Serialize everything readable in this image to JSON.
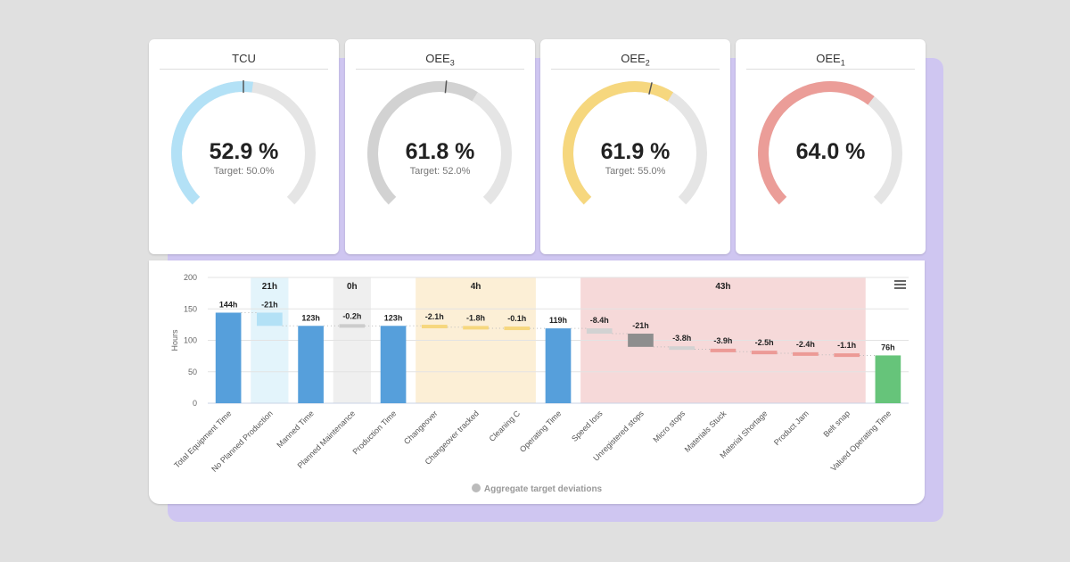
{
  "gauges": [
    {
      "title": "TCU",
      "sub": "",
      "value_label": "52.9 %",
      "value": 52.9,
      "target_label": "Target: 50.0%",
      "target": 50.0,
      "color": "#b3e1f6"
    },
    {
      "title": "OEE",
      "sub": "3",
      "value_label": "61.8 %",
      "value": 61.8,
      "target_label": "Target: 52.0%",
      "target": 52.0,
      "color": "#d2d2d2"
    },
    {
      "title": "OEE",
      "sub": "2",
      "value_label": "61.9 %",
      "value": 61.9,
      "target_label": "Target: 55.0%",
      "target": 55.0,
      "color": "#f6d77e"
    },
    {
      "title": "OEE",
      "sub": "1",
      "value_label": "64.0 %",
      "value": 64.0,
      "target_label": "",
      "target": null,
      "color": "#eb9d98"
    }
  ],
  "legend": {
    "label": "Aggregate target deviations"
  },
  "chart_data": {
    "type": "waterfall",
    "ylabel": "Hours",
    "ylim": [
      0,
      200
    ],
    "yticks": [
      0,
      50,
      100,
      150,
      200
    ],
    "grid": true,
    "categories": [
      "Total Equipment Time",
      "No Planned Production",
      "Manned Time",
      "Planned Maintenance",
      "Production Time",
      "Changeover",
      "Changeover tracked",
      "Cleaning C",
      "Operating Time",
      "Speed loss",
      "Unregistered stops",
      "Micro stops",
      "Materials Stuck",
      "Material Shortage",
      "Product Jam",
      "Belt snap",
      "Valued Operating Time"
    ],
    "values": [
      144,
      -21,
      123,
      -0.2,
      123,
      -2.1,
      -1.8,
      -0.1,
      119,
      -8.4,
      -21,
      -3.8,
      -3.9,
      -2.5,
      -2.4,
      -1.1,
      76
    ],
    "is_total": [
      true,
      false,
      true,
      false,
      true,
      false,
      false,
      false,
      true,
      false,
      false,
      false,
      false,
      false,
      false,
      false,
      true
    ],
    "labels": [
      "144h",
      "-21h",
      "123h",
      "-0.2h",
      "123h",
      "-2.1h",
      "-1.8h",
      "-0.1h",
      "119h",
      "-8.4h",
      "-21h",
      "-3.8h",
      "-3.9h",
      "-2.5h",
      "-2.4h",
      "-1.1h",
      "76h"
    ],
    "colors": [
      "#569fdb",
      "#b3e1f6",
      "#569fdb",
      "#cccccc",
      "#569fdb",
      "#f6d77e",
      "#f6d77e",
      "#f6d77e",
      "#569fdb",
      "#d2d2d2",
      "#8e8e8e",
      "#d2d2d2",
      "#ec9a96",
      "#ec9a96",
      "#ec9a96",
      "#ec9a96",
      "#66c47a"
    ],
    "groups": [
      {
        "label": "21h",
        "from": 1,
        "to": 1,
        "color": "#e3f4fb"
      },
      {
        "label": "0h",
        "from": 3,
        "to": 3,
        "color": "#efefef"
      },
      {
        "label": "4h",
        "from": 5,
        "to": 7,
        "color": "#fcefd6"
      },
      {
        "label": "43h",
        "from": 9,
        "to": 15,
        "color": "#f6d9d9"
      }
    ]
  }
}
